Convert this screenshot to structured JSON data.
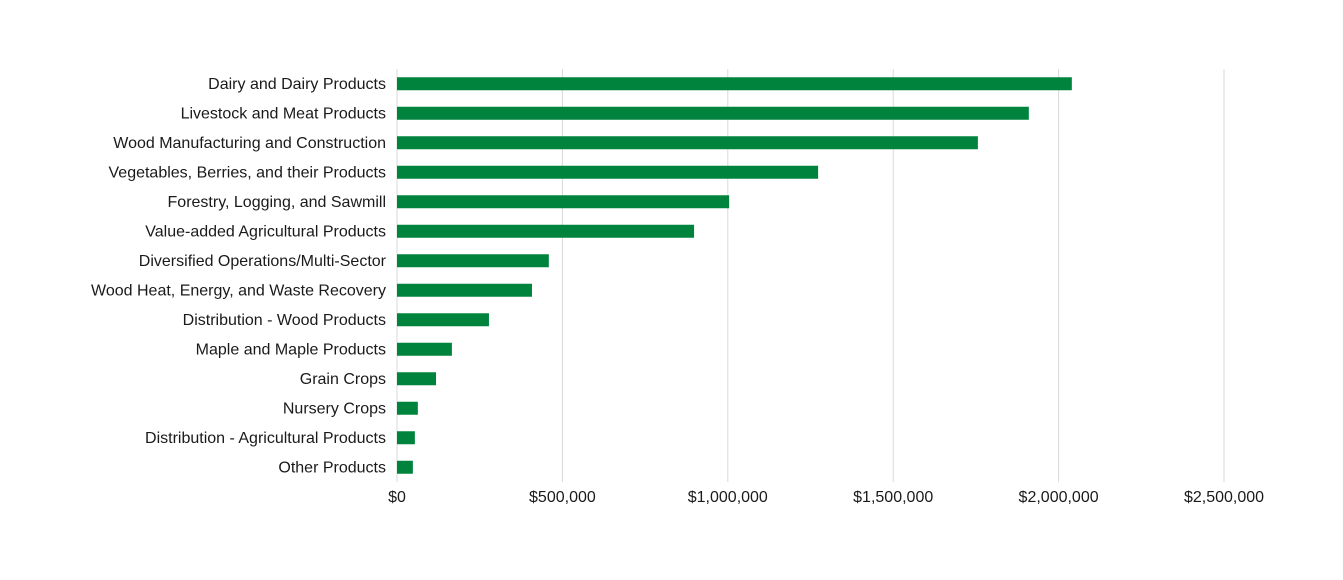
{
  "chart_data": {
    "type": "hbar",
    "categories": [
      "Dairy and Dairy Products",
      "Livestock and Meat Products",
      "Wood Manufacturing and Construction",
      "Vegetables, Berries, and their Products",
      "Forestry, Logging, and Sawmill",
      "Value-added Agricultural Products",
      "Diversified Operations/Multi-Sector",
      "Wood Heat, Energy, and Waste Recovery",
      "Distribution - Wood Products",
      "Maple and Maple Products",
      "Grain Crops",
      "Nursery Crops",
      "Distribution - Agricultural Products",
      "Other Products"
    ],
    "values": [
      2040000,
      1910000,
      1756000,
      1273000,
      1004000,
      898000,
      459000,
      408000,
      278000,
      166000,
      118000,
      63000,
      54000,
      48000
    ],
    "color": "#00843d",
    "xlim": [
      0,
      2500000
    ],
    "xticks": [
      {
        "value": 0,
        "label": "$0"
      },
      {
        "value": 500000,
        "label": "$500,000"
      },
      {
        "value": 1000000,
        "label": "$1,000,000"
      },
      {
        "value": 1500000,
        "label": "$1,500,000"
      },
      {
        "value": 2000000,
        "label": "$2,000,000"
      },
      {
        "value": 2500000,
        "label": "$2,500,000"
      }
    ],
    "grid": true
  }
}
